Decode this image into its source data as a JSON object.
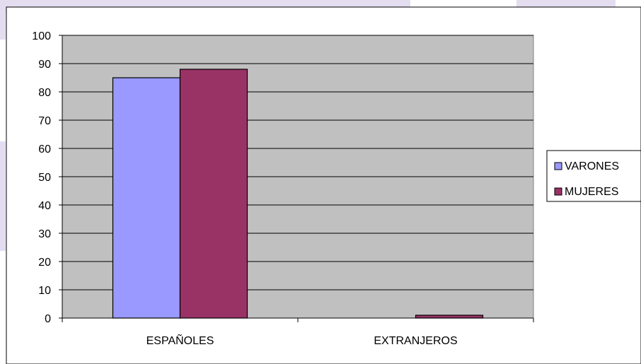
{
  "chart_data": {
    "type": "bar",
    "categories": [
      "ESPAÑOLES",
      "EXTRANJEROS"
    ],
    "series": [
      {
        "name": "VARONES",
        "values": [
          85,
          0
        ],
        "color": "#9999FF"
      },
      {
        "name": "MUJERES",
        "values": [
          88,
          1
        ],
        "color": "#993366"
      }
    ],
    "title": "",
    "xlabel": "",
    "ylabel": "",
    "ylim": [
      0,
      100
    ],
    "yticks": [
      0,
      10,
      20,
      30,
      40,
      50,
      60,
      70,
      80,
      90,
      100
    ],
    "grid": true,
    "legend": "right",
    "plot_background": "#C0C0C0"
  }
}
